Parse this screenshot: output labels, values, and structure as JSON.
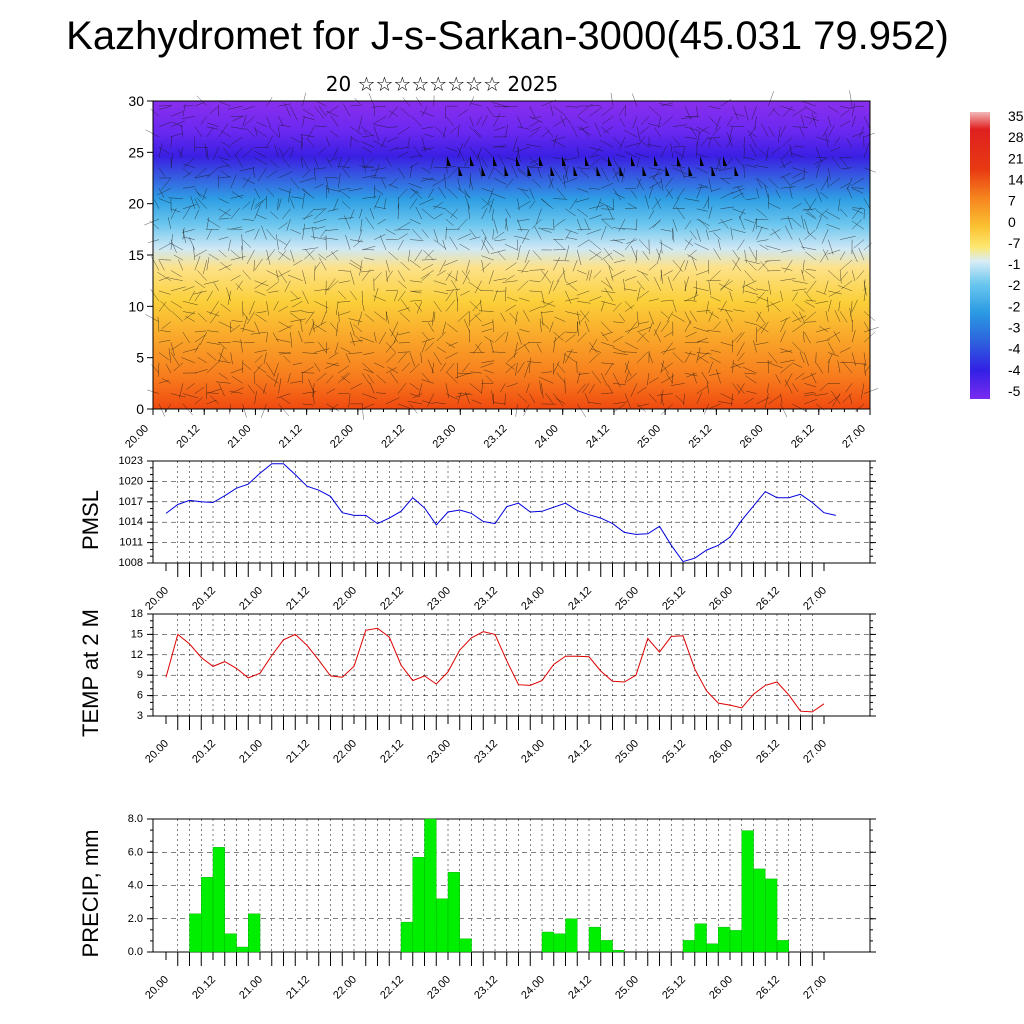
{
  "title": "Kazhydromet for J-s-Sarkan-3000(45.031 79.952)",
  "subtitle": "20 ☆☆☆☆☆☆☆☆ 2025",
  "colors": {
    "pmsl_line": "#0000dd",
    "temp_line": "#dd0000",
    "precip_bar": "#00ee00",
    "precip_bar_stroke": "#00aa00"
  },
  "time_labels": [
    "20.00",
    "20.12",
    "21.00",
    "21.12",
    "22.00",
    "22.12",
    "23.00",
    "23.12",
    "24.00",
    "24.12",
    "25.00",
    "25.12",
    "26.00",
    "26.12",
    "27.00"
  ],
  "chart_data": [
    {
      "type": "heatmap",
      "name_panel": "cross-section",
      "y_ticks": [
        "0",
        "5",
        "10",
        "15",
        "20",
        "25",
        "30"
      ],
      "ylim": [
        0,
        30
      ],
      "colorbar_labels": [
        "35",
        "28",
        "21",
        "14",
        "7",
        "0",
        "-7",
        "-1",
        "-2",
        "-2",
        "-3",
        "-4",
        "-4",
        "-5"
      ],
      "grid": false
    },
    {
      "type": "line",
      "ylabel": "PMSL",
      "ylim": [
        1008,
        1023
      ],
      "y_ticks": [
        "1008",
        "1011",
        "1014",
        "1017",
        "1020",
        "1023"
      ],
      "grid": true,
      "values": [
        1015.3,
        1016.6,
        1017.2,
        1017.0,
        1016.9,
        1017.9,
        1019.0,
        1019.6,
        1021.2,
        1022.6,
        1022.6,
        1021.0,
        1019.3,
        1018.7,
        1017.8,
        1015.4,
        1015.0,
        1015.0,
        1013.8,
        1014.6,
        1015.6,
        1017.6,
        1016.1,
        1013.6,
        1015.5,
        1015.8,
        1015.3,
        1014.1,
        1013.8,
        1016.3,
        1016.8,
        1015.5,
        1015.6,
        1016.2,
        1016.8,
        1015.7,
        1015.1,
        1014.6,
        1013.8,
        1012.5,
        1012.2,
        1012.3,
        1013.4,
        1010.6,
        1008.2,
        1008.7,
        1009.9,
        1010.6,
        1011.8,
        1014.3,
        1016.4,
        1018.5,
        1017.6,
        1017.6,
        1018.1,
        1016.9,
        1015.4,
        1015.0
      ]
    },
    {
      "type": "line",
      "ylabel": "TEMP at 2 M",
      "ylim": [
        3,
        18
      ],
      "y_ticks": [
        "3",
        "6",
        "9",
        "12",
        "15",
        "18"
      ],
      "grid": true,
      "values": [
        8.7,
        15.0,
        13.6,
        11.6,
        10.3,
        11.0,
        10.0,
        8.6,
        9.3,
        11.9,
        14.2,
        15.0,
        13.4,
        11.2,
        8.9,
        8.7,
        10.3,
        15.6,
        15.9,
        14.6,
        10.5,
        8.2,
        8.9,
        7.7,
        9.5,
        12.7,
        14.5,
        15.4,
        15.0,
        11.1,
        7.6,
        7.5,
        8.2,
        10.6,
        11.8,
        11.8,
        11.7,
        9.6,
        8.1,
        8.0,
        9.0,
        14.4,
        12.4,
        14.7,
        14.8,
        9.9,
        6.7,
        4.9,
        4.6,
        4.2,
        6.2,
        7.5,
        8.0,
        6.1,
        3.7,
        3.6,
        4.8
      ]
    },
    {
      "type": "bar",
      "ylabel": "PRECIP, mm",
      "ylim": [
        0,
        8
      ],
      "y_ticks": [
        "0.0",
        "2.0",
        "4.0",
        "6.0",
        "8.0"
      ],
      "grid": true,
      "values": [
        0,
        0,
        2.3,
        4.5,
        6.3,
        1.1,
        0.3,
        2.3,
        0,
        0,
        0,
        0,
        0,
        0,
        0,
        0,
        0,
        0,
        0,
        0,
        1.8,
        5.7,
        8.0,
        3.2,
        4.8,
        0.8,
        0,
        0,
        0,
        0,
        0,
        0,
        1.2,
        1.1,
        2.0,
        0,
        1.5,
        0.7,
        0.1,
        0,
        0,
        0,
        0,
        0,
        0.7,
        1.7,
        0.5,
        1.5,
        1.3,
        7.3,
        5.0,
        4.4,
        0.7,
        0,
        0,
        0,
        0
      ]
    }
  ]
}
